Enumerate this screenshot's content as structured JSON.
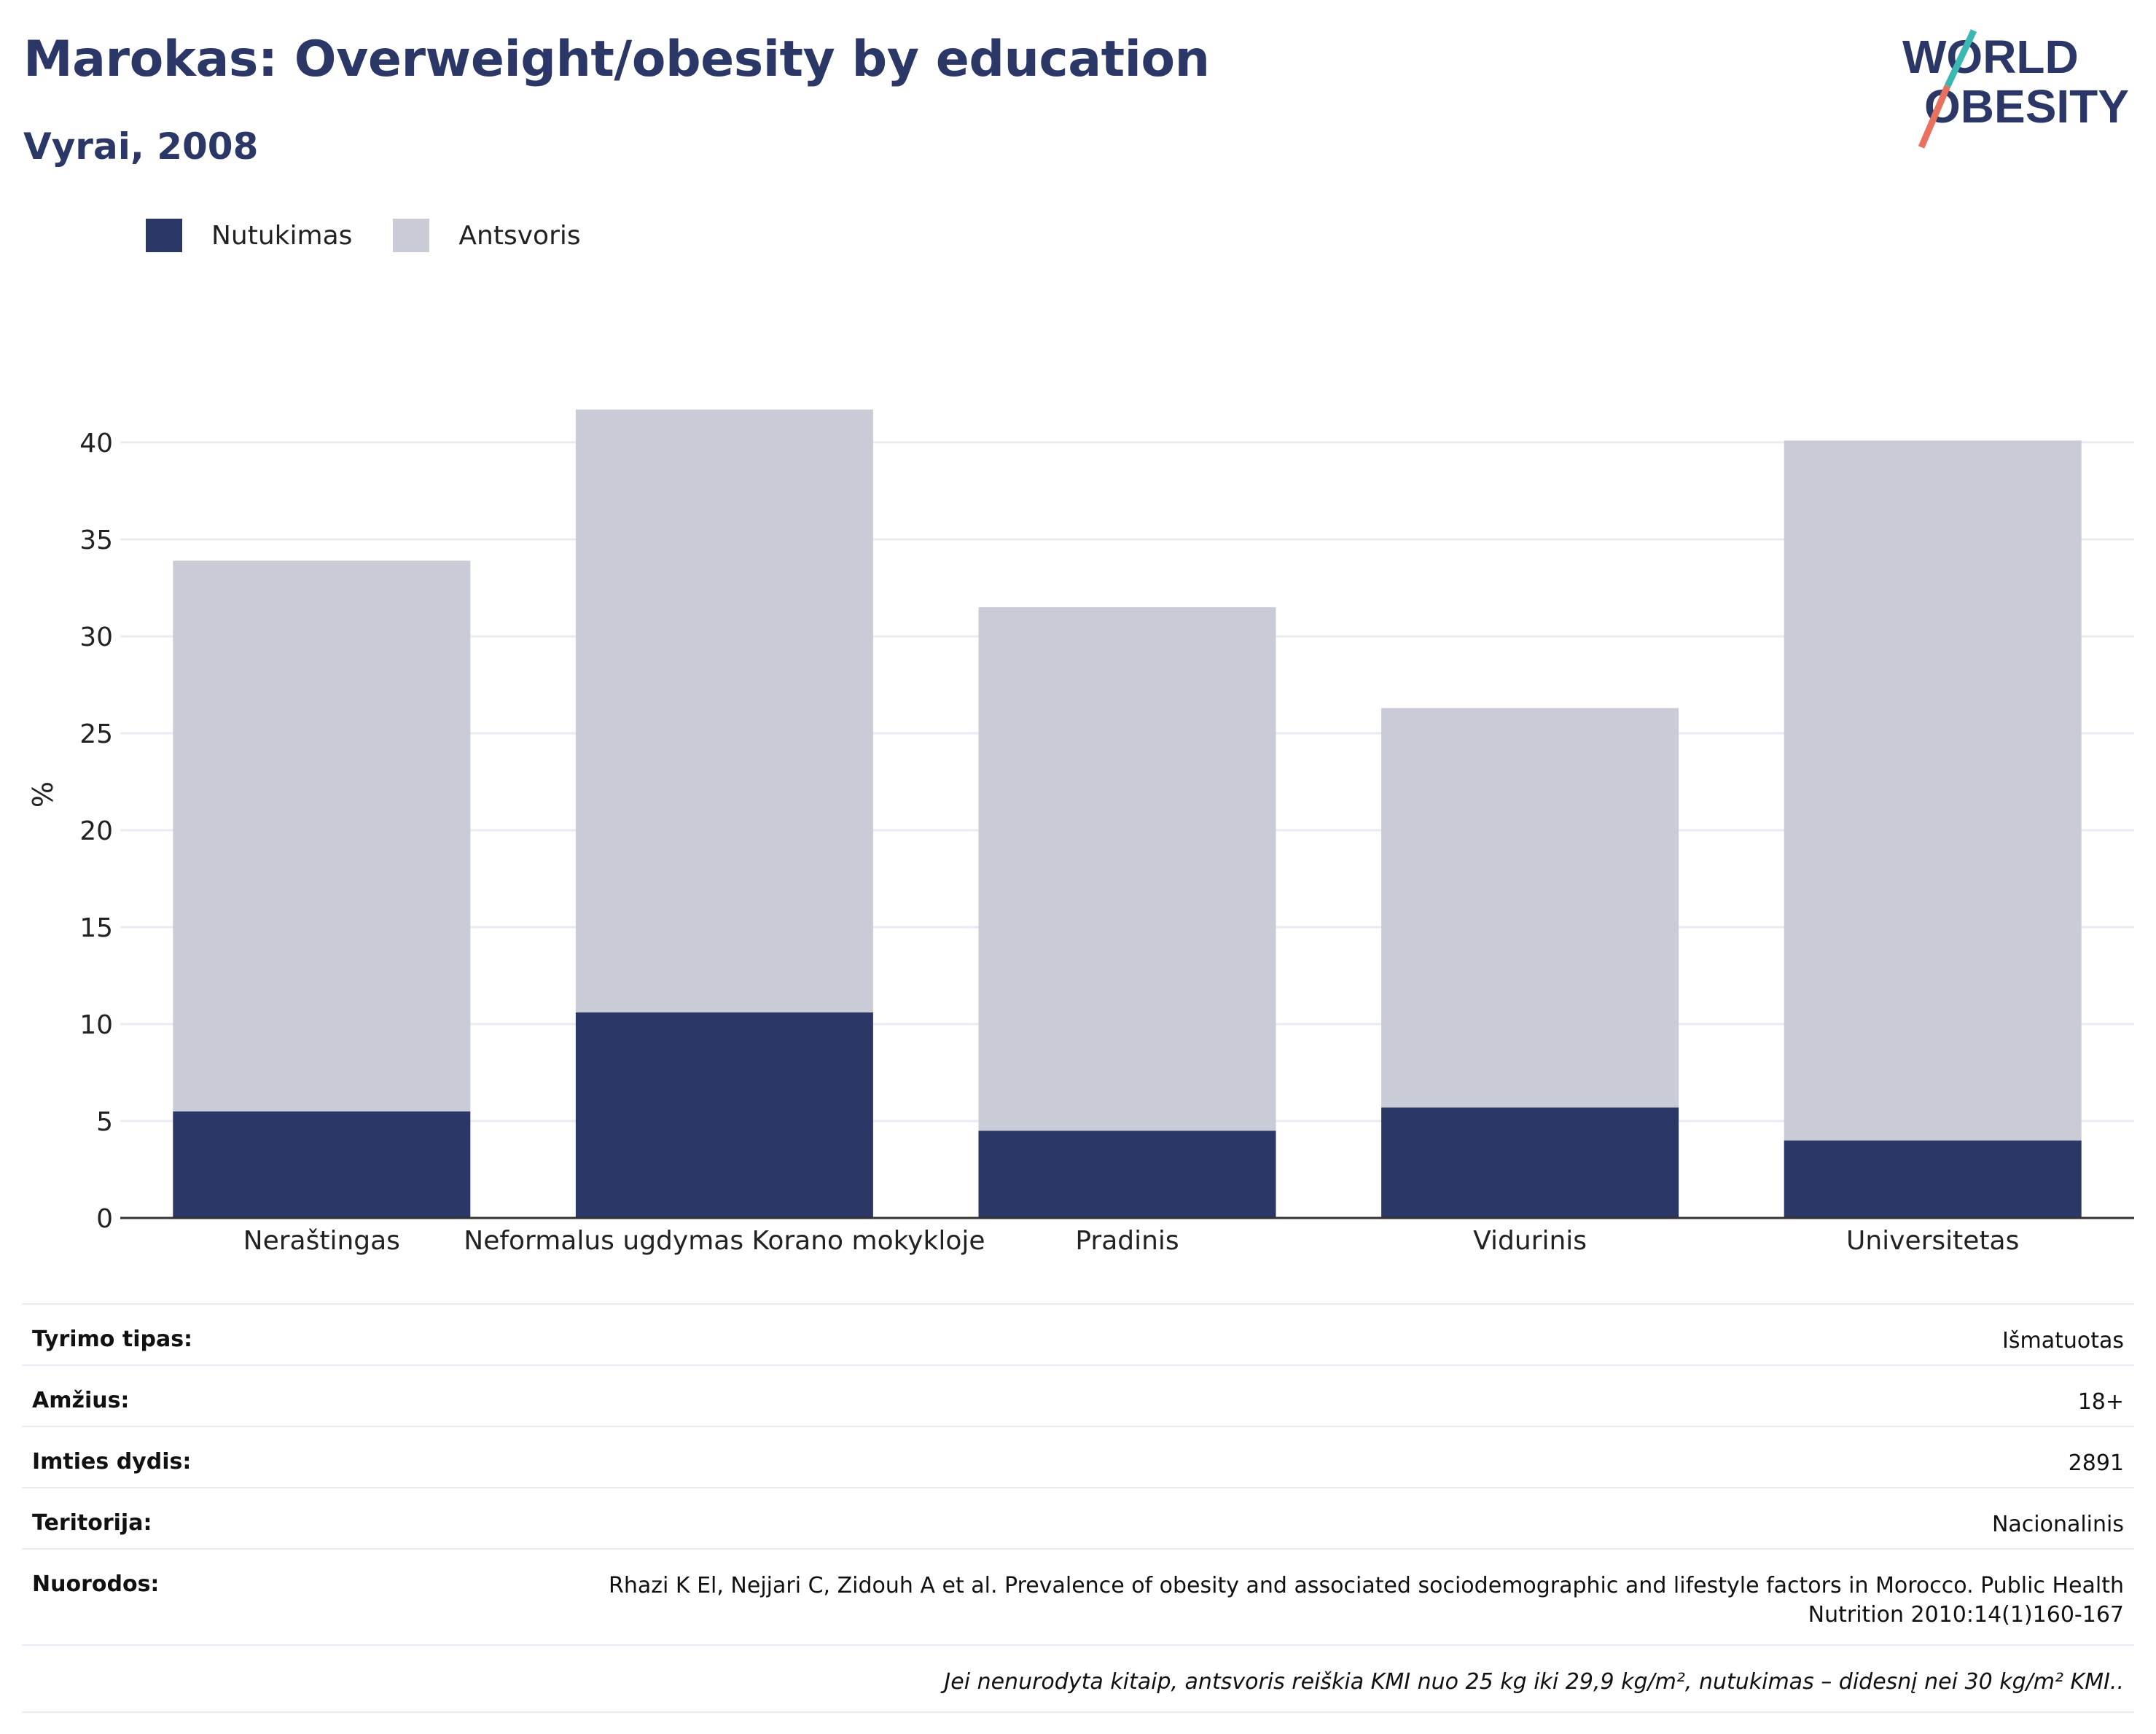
{
  "header": {
    "title": "Marokas: Overweight/obesity by education",
    "subtitle": "Vyrai, 2008",
    "logo_text_top": "WORLD",
    "logo_text_bottom": "OBESITY"
  },
  "legend": [
    {
      "label": "Nutukimas",
      "color": "#2b3766"
    },
    {
      "label": "Antsvoris",
      "color": "#c9ccd7"
    }
  ],
  "chart_data": {
    "type": "bar",
    "stacked": true,
    "categories": [
      "Neraštingas",
      "Neformalus ugdymas Korano mokykloje",
      "Pradinis",
      "Vidurinis",
      "Universitetas"
    ],
    "series": [
      {
        "name": "Nutukimas",
        "color": "#2b3766",
        "values": [
          5.5,
          10.6,
          4.5,
          5.7,
          4.0
        ]
      },
      {
        "name": "Antsvoris",
        "color": "#c9ccd7",
        "values": [
          28.4,
          31.1,
          27.0,
          20.6,
          36.1
        ]
      }
    ],
    "totals": [
      33.9,
      41.7,
      31.5,
      26.3,
      40.1
    ],
    "ylabel": "%",
    "ylim": [
      0,
      42
    ],
    "yticks": [
      0,
      5,
      10,
      15,
      20,
      25,
      30,
      35,
      40
    ],
    "grid": true,
    "legend_position": "top-left"
  },
  "info": [
    {
      "key": "Tyrimo tipas:",
      "value": "Išmatuotas"
    },
    {
      "key": "Amžius:",
      "value": "18+"
    },
    {
      "key": "Imties dydis:",
      "value": "2891"
    },
    {
      "key": "Teritorija:",
      "value": "Nacionalinis"
    },
    {
      "key": "Nuorodos:",
      "value": "Rhazi K El, Nejjari C, Zidouh A et al. Prevalence of obesity and associated sociodemographic and lifestyle factors in Morocco. Public Health Nutrition 2010:14(1)160-167"
    }
  ],
  "footnote": "Jei nenurodyta kitaip, antsvoris reiškia KMI nuo 25 kg iki 29,9 kg/m², nutukimas – didesnį nei 30 kg/m² KMI.."
}
